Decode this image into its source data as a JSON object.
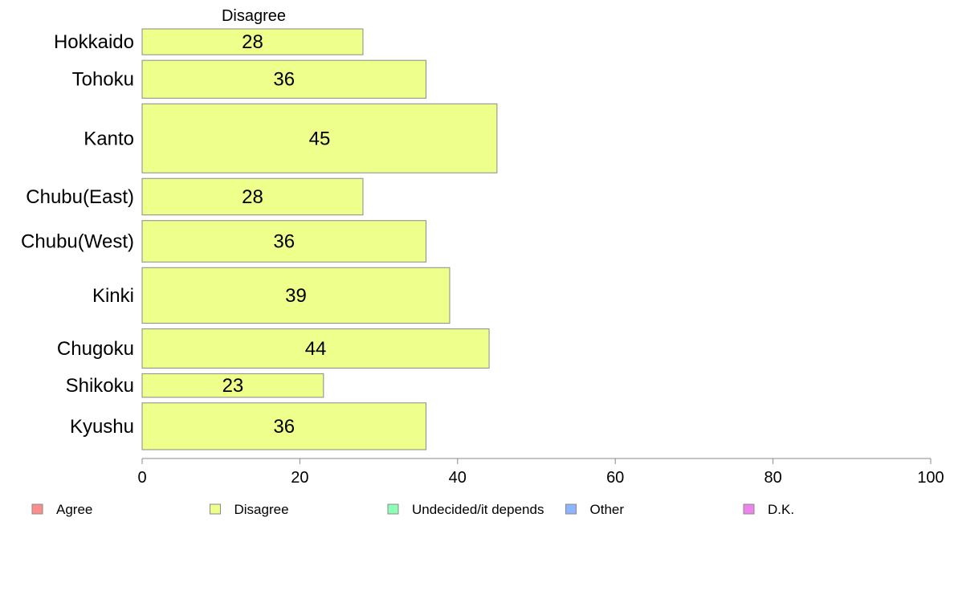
{
  "chart_data": {
    "type": "bar",
    "orientation": "horizontal",
    "title": "Disagree",
    "categories": [
      "Hokkaido",
      "Tohoku",
      "Kanto",
      "Chubu(East)",
      "Chubu(West)",
      "Kinki",
      "Chugoku",
      "Shikoku",
      "Kyushu"
    ],
    "values": [
      28,
      36,
      45,
      28,
      36,
      39,
      44,
      23,
      36
    ],
    "bar_value_labels": [
      "28",
      "36",
      "45",
      "28",
      "36",
      "39",
      "44",
      "23",
      "36"
    ],
    "bar_thickness_rel": [
      0.58,
      0.85,
      1.55,
      0.82,
      0.93,
      1.25,
      0.88,
      0.53,
      1.05
    ],
    "xlim": [
      0,
      100
    ],
    "xticks": [
      0,
      20,
      40,
      60,
      80,
      100
    ],
    "xlabel": "",
    "ylabel": "",
    "grid": false,
    "legend": {
      "placement": "bottom",
      "entries": [
        {
          "label": "Agree",
          "color": "#ff8c8c"
        },
        {
          "label": "Disagree",
          "color": "#eeff8c"
        },
        {
          "label": "Undecided/it depends",
          "color": "#8cffb4"
        },
        {
          "label": "Other",
          "color": "#8cb4ff"
        },
        {
          "label": "D.K.",
          "color": "#ee82ee"
        }
      ]
    },
    "bar_color": "#eeff8c",
    "bar_edge_color": "#8a8a8a"
  }
}
